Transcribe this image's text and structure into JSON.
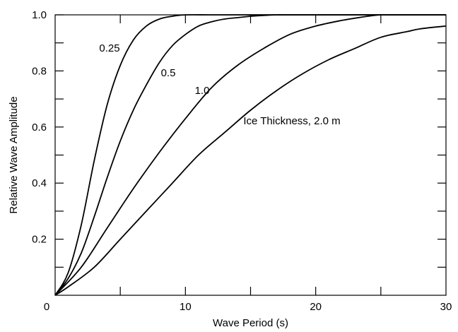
{
  "chart_data": {
    "type": "line",
    "xlabel": "Wave Period (s)",
    "ylabel": "Relative Wave Amplitude",
    "xlim": [
      0,
      30
    ],
    "ylim": [
      0,
      1.0
    ],
    "x_ticks": [
      0,
      10,
      20,
      30
    ],
    "x_tick_labels": [
      "0",
      "10",
      "20",
      "30"
    ],
    "y_ticks": [
      0.2,
      0.4,
      0.6,
      0.8,
      1.0
    ],
    "y_tick_labels": [
      "0.2",
      "0.4",
      "0.6",
      "0.8",
      "1.0"
    ],
    "grid": false,
    "series": [
      {
        "name": "0.25",
        "label": "0.25",
        "x": [
          0,
          1,
          2,
          3,
          4,
          5,
          6,
          7,
          8,
          9,
          10,
          12,
          15,
          20,
          25,
          30
        ],
        "y": [
          0,
          0.08,
          0.25,
          0.48,
          0.68,
          0.82,
          0.91,
          0.96,
          0.985,
          0.995,
          1.0,
          1.0,
          1.0,
          1.0,
          1.0,
          1.0
        ]
      },
      {
        "name": "0.5",
        "label": "0.5",
        "x": [
          0,
          1,
          2,
          3,
          4,
          5,
          6,
          7,
          8,
          9,
          10,
          11,
          12,
          13,
          14,
          15,
          16,
          17,
          18,
          20,
          25,
          30
        ],
        "y": [
          0,
          0.06,
          0.15,
          0.28,
          0.42,
          0.55,
          0.66,
          0.75,
          0.83,
          0.89,
          0.93,
          0.96,
          0.975,
          0.985,
          0.99,
          0.995,
          0.998,
          1.0,
          1.0,
          1.0,
          1.0,
          1.0
        ]
      },
      {
        "name": "1.0",
        "label": "1.0",
        "x": [
          0,
          2,
          4,
          6,
          8,
          10,
          12,
          14,
          16,
          18,
          20,
          22,
          24,
          25,
          26,
          28,
          30
        ],
        "y": [
          0,
          0.1,
          0.24,
          0.38,
          0.51,
          0.63,
          0.74,
          0.82,
          0.88,
          0.93,
          0.96,
          0.98,
          0.995,
          1.0,
          1.0,
          1.0,
          1.0
        ]
      },
      {
        "name": "Ice Thickness, 2.0 m",
        "label": "Ice Thickness, 2.0 m",
        "x": [
          0,
          1,
          3,
          5,
          7,
          9,
          11,
          13,
          15,
          17,
          19,
          21,
          23,
          25,
          27,
          28,
          30
        ],
        "y": [
          0,
          0.03,
          0.1,
          0.2,
          0.3,
          0.4,
          0.5,
          0.58,
          0.66,
          0.73,
          0.79,
          0.84,
          0.88,
          0.92,
          0.94,
          0.95,
          0.96
        ]
      }
    ]
  }
}
